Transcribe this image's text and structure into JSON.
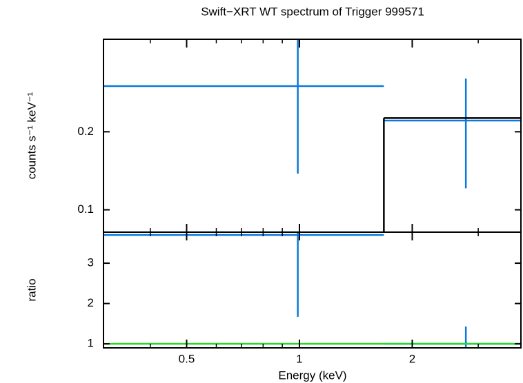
{
  "chart_data": [
    {
      "type": "spectrum",
      "title": "Swift−XRT WT spectrum of Trigger 999571",
      "ylabel": "counts s⁻¹ keV⁻¹",
      "xscale": "log",
      "yscale": "log",
      "xlim": [
        0.3,
        3.9
      ],
      "ylim": [
        0.082,
        0.455
      ],
      "yticks": [
        0.1,
        0.2
      ],
      "bins": [
        0.3,
        1.68,
        3.9
      ],
      "x": [
        0.99,
        2.78
      ],
      "series": [
        {
          "name": "data",
          "color": "#0a78dc",
          "values": [
            0.3,
            0.221
          ],
          "errors": [
            0.162,
            0.1
          ]
        },
        {
          "name": "model",
          "color": "#000000",
          "values": [
            0.08,
            0.226
          ]
        }
      ]
    },
    {
      "type": "ratio",
      "xlabel": "Energy (keV)",
      "ylabel": "ratio",
      "xscale": "log",
      "xlim": [
        0.3,
        3.9
      ],
      "xticks": [
        0.5,
        1,
        2
      ],
      "xminorticks": [
        0.3,
        0.4,
        0.6,
        0.7,
        0.8,
        0.9,
        3
      ],
      "ylim": [
        0.9,
        3.77
      ],
      "yticks": [
        1,
        2,
        3
      ],
      "bins": [
        0.3,
        1.68,
        3.9
      ],
      "x": [
        0.99,
        2.78
      ],
      "series": [
        {
          "name": "data",
          "color": "#0a78dc",
          "values": [
            3.7,
            1.0
          ],
          "errors": [
            2.03,
            0.43
          ]
        },
        {
          "name": "model",
          "color": "#22dd22",
          "values": [
            1,
            1
          ]
        }
      ]
    }
  ]
}
